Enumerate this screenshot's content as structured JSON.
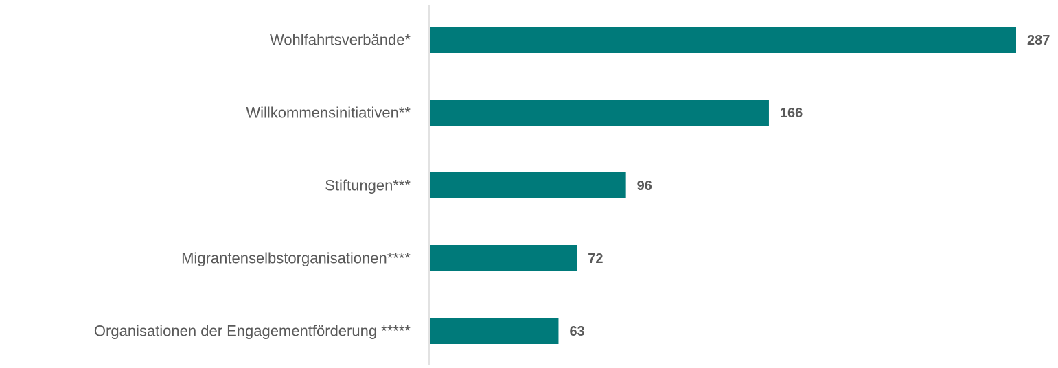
{
  "chart_data": {
    "type": "bar",
    "orientation": "horizontal",
    "categories": [
      "Wohlfahrtsverbände*",
      "Willkommensinitiativen**",
      "Stiftungen***",
      "Migrantenselbstorganisationen****",
      "Organisationen der Engagementförderung *****"
    ],
    "values": [
      287,
      166,
      96,
      72,
      63
    ],
    "title": "",
    "xlabel": "",
    "ylabel": "",
    "xlim": [
      0,
      300
    ],
    "grid": false,
    "legend": "none",
    "bar_color": "#007A7A",
    "text_color": "#595959",
    "axis_color": "#D9D9D9"
  }
}
